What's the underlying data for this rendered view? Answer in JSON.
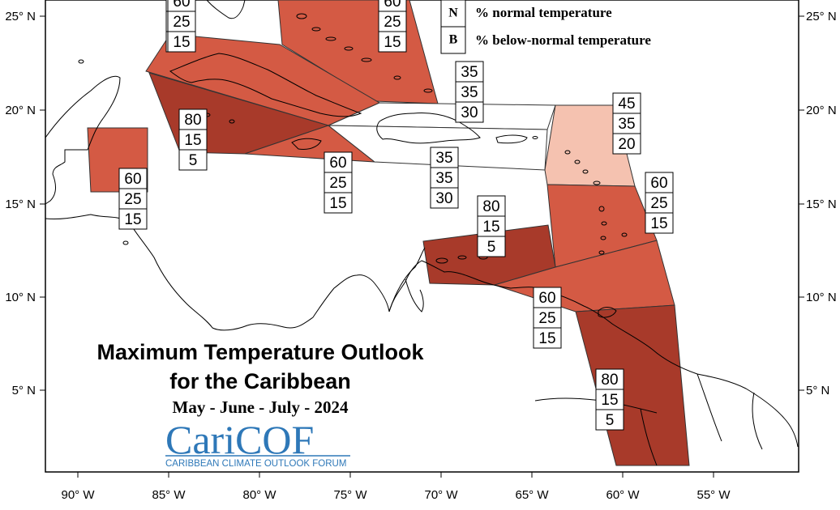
{
  "title": {
    "line1": "Maximum Temperature Outlook",
    "line2": "for the Caribbean",
    "period": "May - June - July - 2024"
  },
  "logo": {
    "wordmark": "CariCOF",
    "tagline": "CARIBBEAN CLIMATE OUTLOOK FORUM"
  },
  "legend": [
    {
      "key": "N",
      "text": "% normal temperature"
    },
    {
      "key": "B",
      "text": "% below-normal temperature"
    }
  ],
  "axes": {
    "x_labels": [
      "90° W",
      "85° W",
      "80° W",
      "75° W",
      "70° W",
      "65° W",
      "60° W",
      "55° W"
    ],
    "lat_labels": [
      "25° N",
      "20° N",
      "15° N",
      "10° N",
      "5° N"
    ]
  },
  "colors": {
    "prob_80": "#a83a2a",
    "prob_60": "#d45a44",
    "prob_45": "#f5c2b0",
    "prob_35": "#ffffff"
  },
  "zones": [
    {
      "name": "bahamas",
      "above": "60",
      "normal": "25",
      "below": "15"
    },
    {
      "name": "cuba",
      "above": "60",
      "normal": "25",
      "below": "15"
    },
    {
      "name": "belize",
      "above": "60",
      "normal": "25",
      "below": "15"
    },
    {
      "name": "cayman-jamaica",
      "above": "80",
      "normal": "15",
      "below": "5"
    },
    {
      "name": "jamaica-south",
      "above": "60",
      "normal": "25",
      "below": "15"
    },
    {
      "name": "hispaniola-north",
      "above": "35",
      "normal": "35",
      "below": "30"
    },
    {
      "name": "hispaniola-south",
      "above": "35",
      "normal": "35",
      "below": "30"
    },
    {
      "name": "turks-caicos",
      "above": "60",
      "normal": "25",
      "below": "15"
    },
    {
      "name": "leeward-islands",
      "above": "45",
      "normal": "35",
      "below": "20"
    },
    {
      "name": "windward-islands",
      "above": "60",
      "normal": "25",
      "below": "15"
    },
    {
      "name": "abc-islands",
      "above": "80",
      "normal": "15",
      "below": "5"
    },
    {
      "name": "trinidad-tobago",
      "above": "60",
      "normal": "25",
      "below": "15"
    },
    {
      "name": "guianas",
      "above": "80",
      "normal": "15",
      "below": "5"
    }
  ]
}
